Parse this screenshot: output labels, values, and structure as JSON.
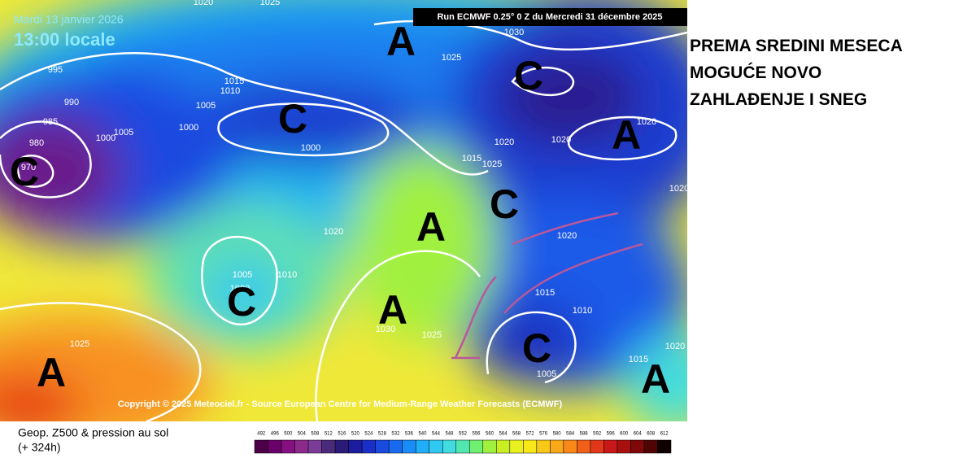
{
  "header": {
    "date": "Mardi 13 janvier 2026",
    "time": "13:00 locale",
    "run": "Run ECMWF 0.25° 0 Z du Mercredi 31 décembre 2025"
  },
  "centers": [
    "A",
    "C",
    "C",
    "A",
    "C",
    "A",
    "C",
    "C",
    "A",
    "A",
    "C",
    "A"
  ],
  "isobars": [
    "1020",
    "1025",
    "1030",
    "1025",
    "1015",
    "1010",
    "1005",
    "995",
    "990",
    "985",
    "1000",
    "1005",
    "1000",
    "1000",
    "980",
    "970",
    "1020",
    "1020",
    "1020",
    "1025",
    "1015",
    "1020",
    "1020",
    "1005",
    "1000",
    "1010",
    "1015",
    "1010",
    "1025",
    "1030",
    "1025",
    "1005",
    "1020",
    "1015",
    "1020"
  ],
  "copyright": "Copyright © 2025 Meteociel.fr - Source European Centre for Medium-Range Weather Forecasts (ECMWF)",
  "caption": {
    "title": "Geop. Z500 & pression au sol",
    "lead": "(+ 324h)"
  },
  "scale": {
    "values": [
      492,
      496,
      500,
      504,
      508,
      512,
      516,
      520,
      524,
      528,
      532,
      536,
      540,
      544,
      548,
      552,
      556,
      560,
      564,
      568,
      572,
      576,
      580,
      584,
      588,
      592,
      596,
      600,
      604,
      608,
      612
    ],
    "colors": [
      "#4b0048",
      "#6a006a",
      "#86107f",
      "#8c2a8c",
      "#7a3c96",
      "#4a2a7a",
      "#2c1a78",
      "#1c1ca0",
      "#1a2ec8",
      "#1a4ae0",
      "#1a6af0",
      "#1a8cf8",
      "#20aef8",
      "#30c8f0",
      "#40dce0",
      "#50e8b0",
      "#70f070",
      "#a0f040",
      "#c8f020",
      "#e8f020",
      "#f8e818",
      "#f8c818",
      "#f8a818",
      "#f88818",
      "#f06018",
      "#e03818",
      "#c81818",
      "#a81010",
      "#800808",
      "#500404",
      "#100000"
    ]
  },
  "note": [
    "PREMA SREDINI MESECA",
    "MOGUĆE NOVO",
    "ZAHLAĐENJE I SNEG"
  ]
}
